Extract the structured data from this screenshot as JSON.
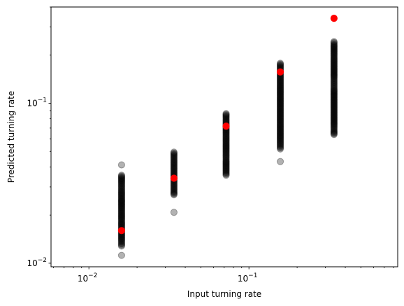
{
  "chart_data": {
    "type": "scatter",
    "xscale": "log",
    "yscale": "log",
    "xlabel": "Input turning rate",
    "ylabel": "Predicted turning rate",
    "xlim": [
      0.0058,
      0.85
    ],
    "ylim": [
      0.0095,
      0.4
    ],
    "grid": false,
    "x_ticks": [
      {
        "value": 0.01,
        "base": "10",
        "exp": "−2"
      },
      {
        "value": 0.1,
        "base": "10",
        "exp": "−1"
      }
    ],
    "y_ticks": [
      {
        "value": 0.01,
        "base": "10",
        "exp": "−2"
      },
      {
        "value": 0.1,
        "base": "10",
        "exp": "−1"
      }
    ],
    "series": [
      {
        "color": "#000000",
        "opacity": 0.3,
        "groups": [
          {
            "x": 0.016,
            "y": [
              0.0112,
              0.0128,
              0.0138,
              0.0145,
              0.0152,
              0.0158,
              0.0165,
              0.0172,
              0.018,
              0.0188,
              0.0195,
              0.0202,
              0.021,
              0.0218,
              0.0226,
              0.0234,
              0.0242,
              0.025,
              0.026,
              0.027,
              0.028,
              0.0292,
              0.0305,
              0.0318,
              0.033,
              0.0342,
              0.0355,
              0.0412
            ]
          },
          {
            "x": 0.034,
            "y": [
              0.0208,
              0.0268,
              0.0278,
              0.029,
              0.0302,
              0.0315,
              0.0328,
              0.0342,
              0.0356,
              0.037,
              0.0385,
              0.04,
              0.0416,
              0.0432,
              0.045,
              0.047,
              0.0495
            ]
          },
          {
            "x": 0.072,
            "y": [
              0.0355,
              0.0375,
              0.0395,
              0.0415,
              0.0435,
              0.0455,
              0.0475,
              0.0495,
              0.0515,
              0.0535,
              0.0555,
              0.0578,
              0.06,
              0.0625,
              0.065,
              0.0675,
              0.07,
              0.0728,
              0.0755,
              0.0785,
              0.082,
              0.0862
            ]
          },
          {
            "x": 0.157,
            "y": [
              0.0432,
              0.0518,
              0.055,
              0.058,
              0.061,
              0.064,
              0.0672,
              0.0705,
              0.074,
              0.0778,
              0.0816,
              0.0856,
              0.0898,
              0.0942,
              0.0988,
              0.1036,
              0.1086,
              0.114,
              0.1195,
              0.1255,
              0.1318,
              0.1385,
              0.1455,
              0.153,
              0.165,
              0.178
            ]
          },
          {
            "x": 0.34,
            "y": [
              0.0638,
              0.0668,
              0.0698,
              0.0728,
              0.0762,
              0.0798,
              0.0836,
              0.0876,
              0.0918,
              0.0962,
              0.1008,
              0.1056,
              0.1106,
              0.1158,
              0.1212,
              0.1268,
              0.1326,
              0.1386,
              0.145,
              0.1518,
              0.159,
              0.1665,
              0.1745,
              0.183,
              0.192,
              0.202,
              0.212,
              0.222,
              0.2325,
              0.243
            ]
          }
        ]
      },
      {
        "color": "#ff0000",
        "opacity": 1,
        "points": [
          {
            "x": 0.016,
            "y": 0.016
          },
          {
            "x": 0.034,
            "y": 0.034
          },
          {
            "x": 0.072,
            "y": 0.072
          },
          {
            "x": 0.157,
            "y": 0.157
          },
          {
            "x": 0.34,
            "y": 0.34
          }
        ]
      }
    ]
  }
}
